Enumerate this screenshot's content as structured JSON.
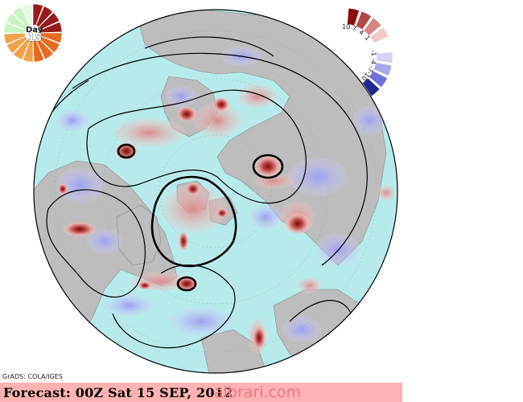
{
  "footer": {
    "forecast_text": "Forecast: 00Z Sat 15 SEP, 2012",
    "watermark": "albrari.com"
  },
  "credit": "GrADS: COLA/IGES",
  "day_badge": {
    "label": "Day",
    "number": "15"
  },
  "legend": {
    "labels": [
      "10",
      "7",
      "4",
      "1",
      "-1",
      "-4",
      "-7",
      "-10"
    ],
    "colors": {
      "c10": "#8a0c0c",
      "c7": "#b24848",
      "c4": "#d68585",
      "c1": "#f3c8c8",
      "cm1": "#d3d3f7",
      "cm4": "#a8a8ec",
      "cm7": "#6f6fd8",
      "cm10": "#25258f"
    }
  },
  "colors": {
    "ocean": "#b7ebeb",
    "land": "#bdbdbd",
    "contour": "#000000",
    "positive": "#e8a0a0",
    "positive_strong": "#a82020",
    "negative": "#b7b7f4"
  }
}
